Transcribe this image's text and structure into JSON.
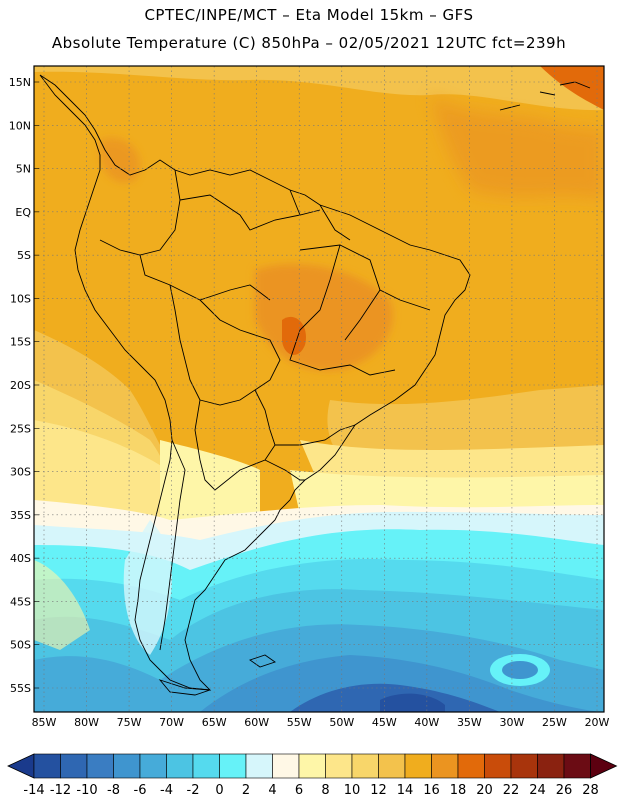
{
  "header": {
    "line1": "CPTEC/INPE/MCT –  Eta Model 15km – GFS",
    "line2": "Absolute Temperature (C) 850hPa – 02/05/2021 12UTC fct=239h"
  },
  "map": {
    "lat_labels": [
      "15N",
      "10N",
      "5N",
      "EQ",
      "5S",
      "10S",
      "15S",
      "20S",
      "25S",
      "30S",
      "35S",
      "40S",
      "45S",
      "50S",
      "55S"
    ],
    "lon_labels": [
      "85W",
      "80W",
      "75W",
      "70W",
      "65W",
      "60W",
      "55W",
      "50W",
      "45W",
      "40W",
      "35W",
      "30W",
      "25W",
      "20W"
    ],
    "lon_range": [
      -85,
      -20
    ],
    "lat_range": [
      -58,
      16
    ],
    "gridlines": true
  },
  "colorbar": {
    "labels": [
      "-14",
      "-12",
      "-10",
      "-8",
      "-6",
      "-4",
      "-2",
      "0",
      "2",
      "4",
      "6",
      "8",
      "10",
      "12",
      "14",
      "16",
      "18",
      "20",
      "22",
      "24",
      "26",
      "28"
    ],
    "colors": [
      "#1a3a8c",
      "#2451a0",
      "#2f67b2",
      "#3a7dc2",
      "#3f95cf",
      "#46abd9",
      "#4cc4e3",
      "#55daee",
      "#66f2f8",
      "#d6f6fb",
      "#fff8e6",
      "#fef6a8",
      "#fde68a",
      "#f8d66a",
      "#f3c24c",
      "#f0ad1e",
      "#eb9420",
      "#e26a0a",
      "#c94c0a",
      "#a8340c",
      "#8a2210",
      "#6b0c14",
      "#5c0010"
    ]
  }
}
